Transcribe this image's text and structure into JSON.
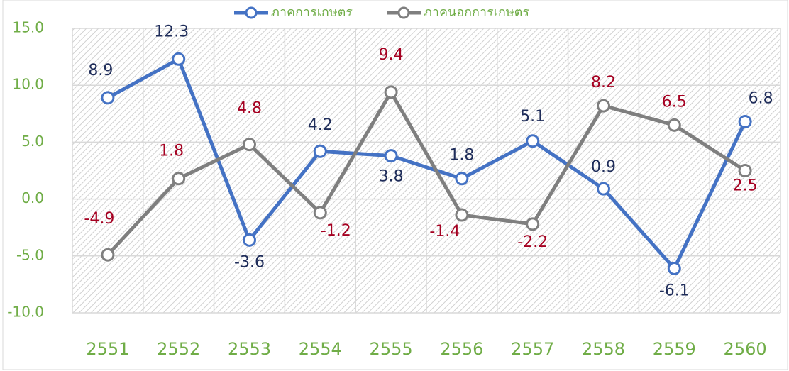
{
  "chart_data": {
    "type": "line",
    "categories": [
      "2551",
      "2552",
      "2553",
      "2554",
      "2555",
      "2556",
      "2557",
      "2558",
      "2559",
      "2560"
    ],
    "series": [
      {
        "name": "ภาคการเกษตร",
        "color": "#4472c4",
        "label_color": "#1f2d5a",
        "values": [
          8.9,
          12.3,
          -3.6,
          4.2,
          3.8,
          1.8,
          5.1,
          0.9,
          -6.1,
          6.8
        ]
      },
      {
        "name": "ภาคนอกการเกษตร",
        "color": "#7f7f7f",
        "label_color": "#a50021",
        "values": [
          -4.9,
          1.8,
          4.8,
          -1.2,
          9.4,
          -1.4,
          -2.2,
          8.2,
          6.5,
          2.5
        ]
      }
    ],
    "ylim": [
      -10,
      15
    ],
    "yticks": [
      {
        "value": -10,
        "label": "-10.0"
      },
      {
        "value": -5,
        "label": "-5.0"
      },
      {
        "value": 0,
        "label": "0.0"
      },
      {
        "value": 5,
        "label": "5.0"
      },
      {
        "value": 10,
        "label": "10.0"
      },
      {
        "value": 15,
        "label": "15.0"
      }
    ],
    "grid": true,
    "legend": "top",
    "tick_color": "#70ad47"
  }
}
